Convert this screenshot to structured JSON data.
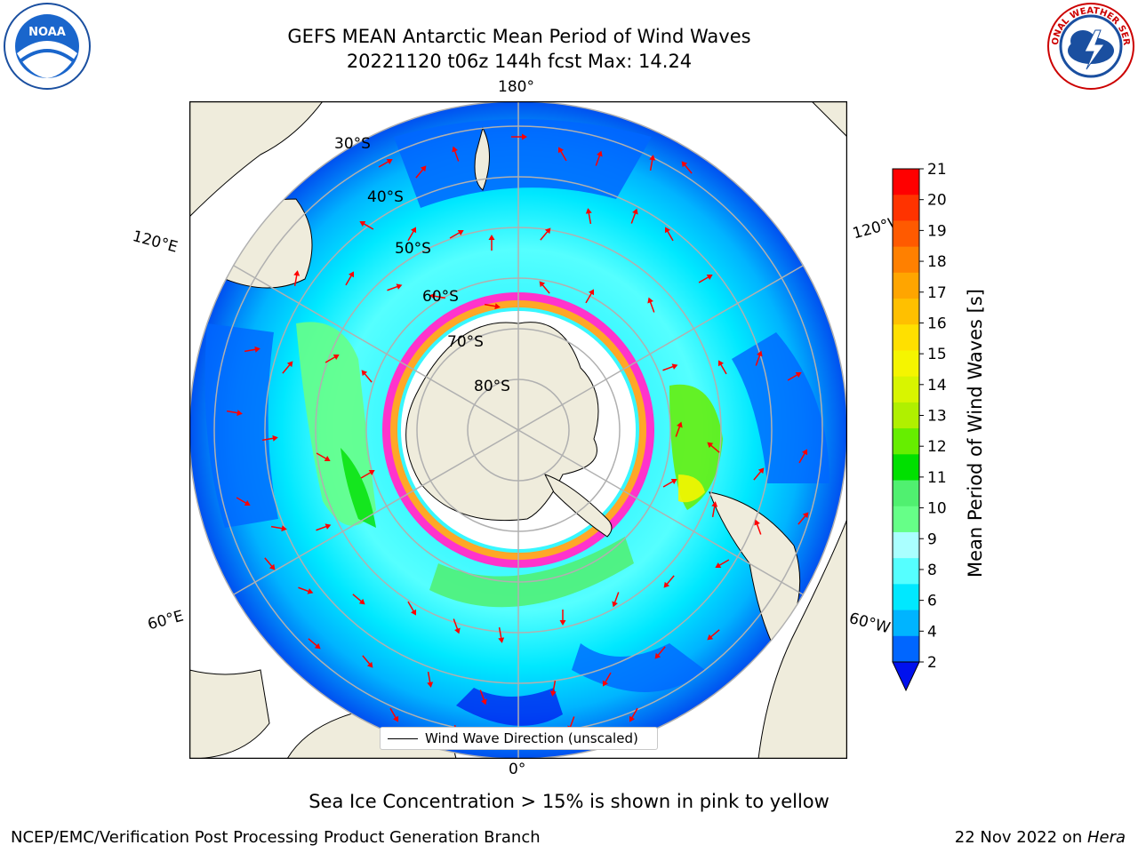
{
  "header": {
    "title_line1": "GEFS MEAN Antarctic Mean Period of Wind Waves",
    "title_line2": "20221120 t06z 144h fcst   Max: 14.24"
  },
  "logos": {
    "noaa": "NOAA",
    "noaa_ring": "NATIONAL OCEANIC AND ATMOSPHERIC ADMINISTRATION · U.S. DEPARTMENT OF COMMERCE",
    "nws_ring": "NATIONAL WEATHER SERVICE"
  },
  "map": {
    "lon_labels": {
      "top": "180°",
      "bottom": "0°",
      "left_upper": "120°E",
      "right_upper": "120°W",
      "left_lower": "60°E",
      "right_lower": "60°W"
    },
    "lat_labels": [
      "30°S",
      "40°S",
      "50°S",
      "60°S",
      "70°S",
      "80°S"
    ],
    "legend_label": "Wind Wave Direction (unscaled)",
    "colors": {
      "land": "#efecdc",
      "ice_outline": "#ff33cc",
      "ice_inner": "#ffa726",
      "arrow": "#ff0000",
      "grid": "#b0b0b0"
    }
  },
  "colorbar": {
    "label": "Mean Period of Wind Waves [s]",
    "ticks": [
      "21",
      "20",
      "19",
      "18",
      "17",
      "16",
      "15",
      "14",
      "13",
      "12",
      "11",
      "10",
      "9",
      "8",
      "6",
      "4",
      "2"
    ],
    "colors_top_to_bottom": [
      "#ff0000",
      "#ff3300",
      "#ff5a00",
      "#ff8000",
      "#ffa500",
      "#ffc000",
      "#ffe000",
      "#f5f500",
      "#d8f500",
      "#b0f000",
      "#66ee00",
      "#00e000",
      "#50f070",
      "#66ff88",
      "#aaffff",
      "#55ffff",
      "#00e8ff",
      "#00b4ff",
      "#0066ff"
    ],
    "under_color": "#0011ee"
  },
  "caption": "Sea Ice Concentration > 15% is shown in pink to yellow",
  "footer": {
    "left": "NCEP/EMC/Verification Post Processing Product Generation Branch",
    "right_prefix": "22 Nov 2022 on ",
    "right_machine": "Hera"
  }
}
